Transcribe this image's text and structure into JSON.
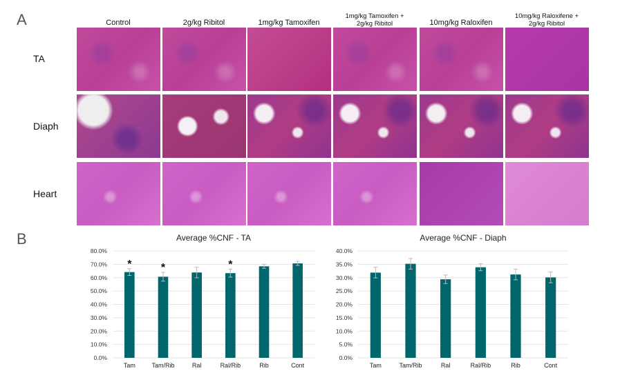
{
  "panels": {
    "a": "A",
    "b": "B"
  },
  "columns": [
    "Control",
    "2g/kg Ribitol",
    "1mg/kg Tamoxifen",
    "1mg/kg Tamoxifen +\n2g/kg Ribitol",
    "10mg/kg Raloxifen",
    "10mg/kg Raloxifene +\n2g/kg Ribitol"
  ],
  "rows": [
    "TA",
    "Diaph",
    "Heart"
  ],
  "chart_data": [
    {
      "type": "bar",
      "title": "Average %CNF - TA",
      "categories": [
        "Tam",
        "Tam/Rib",
        "Ral",
        "Ral/Rib",
        "Rib",
        "Cont"
      ],
      "values": [
        64.2,
        60.7,
        63.9,
        63.4,
        68.5,
        70.7
      ],
      "errors": [
        2.5,
        3.3,
        4.0,
        3.0,
        1.5,
        1.5
      ],
      "significance": [
        "*",
        "*",
        "",
        "*",
        "",
        ""
      ],
      "ylim": [
        0,
        80
      ],
      "yticks": [
        "0.0%",
        "10.0%",
        "20.0%",
        "30.0%",
        "40.0%",
        "50.0%",
        "60.0%",
        "70.0%",
        "80.0%"
      ],
      "grid": true,
      "color": "#00666b"
    },
    {
      "type": "bar",
      "title": "Average %CNF - Diaph",
      "categories": [
        "Tam",
        "Tam/Rib",
        "Ral",
        "Ral/Rib",
        "Rib",
        "Cont"
      ],
      "values": [
        31.9,
        35.2,
        29.4,
        33.9,
        31.2,
        30.1
      ],
      "errors": [
        2.0,
        2.0,
        1.6,
        1.3,
        2.0,
        2.0
      ],
      "significance": [
        "",
        "",
        "",
        "",
        "",
        ""
      ],
      "ylim": [
        0,
        40
      ],
      "yticks": [
        "0.0%",
        "5.0%",
        "10.0%",
        "15.0%",
        "20.0%",
        "25.0%",
        "30.0%",
        "35.0%",
        "40.0%"
      ],
      "grid": true,
      "color": "#00666b"
    }
  ]
}
